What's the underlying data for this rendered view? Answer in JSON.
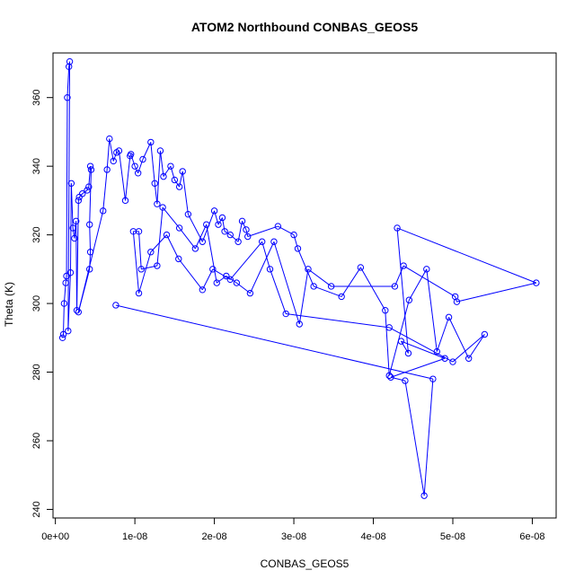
{
  "chart_data": {
    "type": "line",
    "title": "ATOM2 Northbound CONBAS_GEOS5",
    "xlabel": "CONBAS_GEOS5",
    "ylabel": "Theta (K)",
    "xlim": [
      -3e-10,
      6.3e-08
    ],
    "ylim": [
      237.5,
      373
    ],
    "x_ticks": [
      0,
      1e-08,
      2e-08,
      3e-08,
      4e-08,
      5e-08,
      6e-08
    ],
    "x_tick_labels": [
      "0e+00",
      "1e-08",
      "2e-08",
      "3e-08",
      "4e-08",
      "5e-08",
      "6e-08"
    ],
    "y_ticks": [
      240,
      260,
      280,
      300,
      320,
      340,
      360
    ],
    "y_tick_labels": [
      "240",
      "260",
      "280",
      "300",
      "320",
      "340",
      "360"
    ],
    "grid": false,
    "legend": "none",
    "marker": "open-circle",
    "color": "#0000ff",
    "series": [
      {
        "points": [
          [
            9e-10,
            290
          ],
          [
            1e-09,
            291
          ],
          [
            1.1e-09,
            300
          ],
          [
            1.3e-09,
            306
          ],
          [
            1.4e-09,
            308
          ],
          [
            1.5e-09,
            360
          ],
          [
            1.7e-09,
            369
          ],
          [
            1.8e-09,
            370.5
          ],
          [
            1.6e-09,
            292
          ],
          [
            1.9e-09,
            309
          ],
          [
            2e-09,
            335
          ],
          [
            2.2e-09,
            322
          ],
          [
            2.4e-09,
            319
          ],
          [
            2.6e-09,
            324
          ],
          [
            2.7e-09,
            298
          ],
          [
            2.9e-09,
            330
          ],
          [
            3e-09,
            331
          ],
          [
            3.4e-09,
            332
          ],
          [
            4e-09,
            333
          ],
          [
            4.2e-09,
            334
          ],
          [
            4.4e-09,
            340
          ],
          [
            4.5e-09,
            339
          ],
          [
            4.3e-09,
            323
          ],
          [
            4.4e-09,
            315
          ],
          [
            4.3e-09,
            310
          ],
          [
            2.9e-09,
            297.5
          ],
          [
            6e-09,
            327
          ],
          [
            6.5e-09,
            339
          ],
          [
            6.8e-09,
            348
          ],
          [
            7.3e-09,
            341.5
          ],
          [
            7.7e-09,
            344
          ],
          [
            8e-09,
            344.5
          ],
          [
            8.8e-09,
            330
          ],
          [
            9.4e-09,
            343
          ],
          [
            9.5e-09,
            343.5
          ],
          [
            1e-08,
            340
          ],
          [
            1.04e-08,
            338
          ],
          [
            1.1e-08,
            342
          ],
          [
            1.2e-08,
            347
          ],
          [
            1.25e-08,
            335
          ],
          [
            1.28e-08,
            329
          ],
          [
            1.32e-08,
            344.5
          ],
          [
            1.36e-08,
            337
          ],
          [
            1.45e-08,
            340
          ],
          [
            1.5e-08,
            336
          ],
          [
            1.56e-08,
            334
          ],
          [
            1.6e-08,
            338.5
          ],
          [
            1.67e-08,
            326
          ],
          [
            1.85e-08,
            318
          ],
          [
            2e-08,
            327
          ],
          [
            2.05e-08,
            323
          ],
          [
            2.1e-08,
            325
          ],
          [
            2.13e-08,
            321
          ],
          [
            2.2e-08,
            320
          ],
          [
            2.3e-08,
            318
          ],
          [
            2.35e-08,
            324
          ],
          [
            2.4e-08,
            321.5
          ],
          [
            2.42e-08,
            319.5
          ],
          [
            2.8e-08,
            322.5
          ],
          [
            3e-08,
            320
          ],
          [
            3.05e-08,
            316
          ],
          [
            3.25e-08,
            305
          ],
          [
            3.6e-08,
            302
          ],
          [
            3.84e-08,
            310.5
          ],
          [
            4.15e-08,
            298
          ],
          [
            4.2e-08,
            279
          ],
          [
            4.45e-08,
            301
          ],
          [
            4.67e-08,
            310
          ],
          [
            4.8e-08,
            286
          ],
          [
            4.95e-08,
            296
          ],
          [
            5.2e-08,
            284
          ],
          [
            5.4e-08,
            291
          ],
          [
            5e-08,
            283
          ],
          [
            4.2e-08,
            293
          ],
          [
            2.9e-08,
            297
          ],
          [
            2.7e-08,
            310
          ],
          [
            2.6e-08,
            318
          ],
          [
            2.2e-08,
            307
          ],
          [
            1.98e-08,
            310
          ],
          [
            1.85e-08,
            304
          ],
          [
            1.55e-08,
            313
          ],
          [
            1.4e-08,
            320
          ],
          [
            1.2e-08,
            315
          ],
          [
            1.05e-08,
            303
          ],
          [
            9.8e-09,
            321
          ],
          [
            1.05e-08,
            321
          ],
          [
            1.08e-08,
            310
          ],
          [
            1.28e-08,
            311
          ],
          [
            1.35e-08,
            328
          ],
          [
            1.56e-08,
            322
          ],
          [
            1.76e-08,
            316
          ],
          [
            1.9e-08,
            323
          ],
          [
            2.03e-08,
            306
          ],
          [
            2.15e-08,
            308
          ],
          [
            2.28e-08,
            306
          ],
          [
            2.45e-08,
            303
          ],
          [
            2.75e-08,
            318
          ],
          [
            3.07e-08,
            294
          ],
          [
            3.18e-08,
            310
          ],
          [
            3.47e-08,
            305
          ],
          [
            4.27e-08,
            305
          ],
          [
            4.38e-08,
            311
          ],
          [
            5.03e-08,
            302
          ],
          [
            5.05e-08,
            300.5
          ],
          [
            6.05e-08,
            306
          ],
          [
            4.3e-08,
            322
          ],
          [
            4.44e-08,
            285.5
          ],
          [
            4.35e-08,
            289
          ],
          [
            4.9e-08,
            284
          ],
          [
            4.22e-08,
            278.5
          ],
          [
            4.4e-08,
            277.5
          ],
          [
            4.64e-08,
            244
          ],
          [
            4.75e-08,
            278
          ],
          [
            7.6e-09,
            299.5
          ]
        ]
      }
    ]
  }
}
